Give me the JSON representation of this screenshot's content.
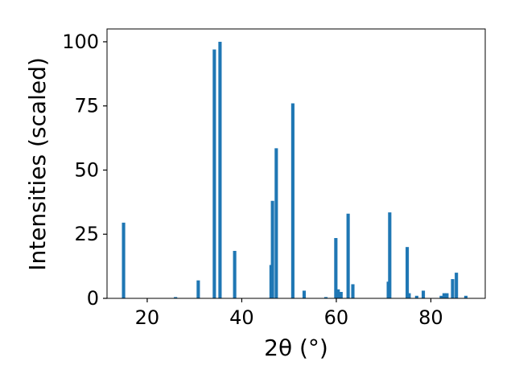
{
  "chart_data": {
    "type": "bar",
    "title": "",
    "xlabel": "2θ (°)",
    "ylabel": "Intensities (scaled)",
    "xlim": [
      11.5,
      91.5
    ],
    "ylim": [
      0,
      105
    ],
    "xticks": [
      20,
      40,
      60,
      80
    ],
    "yticks": [
      0,
      25,
      50,
      75,
      100
    ],
    "grid": false,
    "legend": "none",
    "bar_color": "#1f77b4",
    "bar_width_deg": 0.7,
    "series": [
      {
        "x": [
          15.0,
          26.0,
          30.8,
          34.2,
          35.4,
          38.5,
          46.2,
          46.5,
          47.3,
          50.8,
          53.2,
          57.8,
          59.9,
          60.4,
          61.0,
          62.5,
          63.5,
          71.0,
          71.3,
          75.0,
          75.4,
          77.0,
          78.4,
          82.2,
          82.8,
          83.4,
          84.6,
          85.4,
          87.4
        ],
        "values": [
          29.5,
          0.5,
          7.0,
          97.0,
          100.0,
          18.5,
          13.0,
          38.0,
          58.5,
          76.0,
          3.0,
          0.5,
          23.5,
          3.5,
          2.5,
          33.0,
          5.5,
          6.5,
          33.5,
          20.0,
          2.0,
          1.0,
          3.0,
          1.0,
          2.0,
          2.0,
          7.5,
          10.0,
          1.0
        ]
      }
    ]
  }
}
